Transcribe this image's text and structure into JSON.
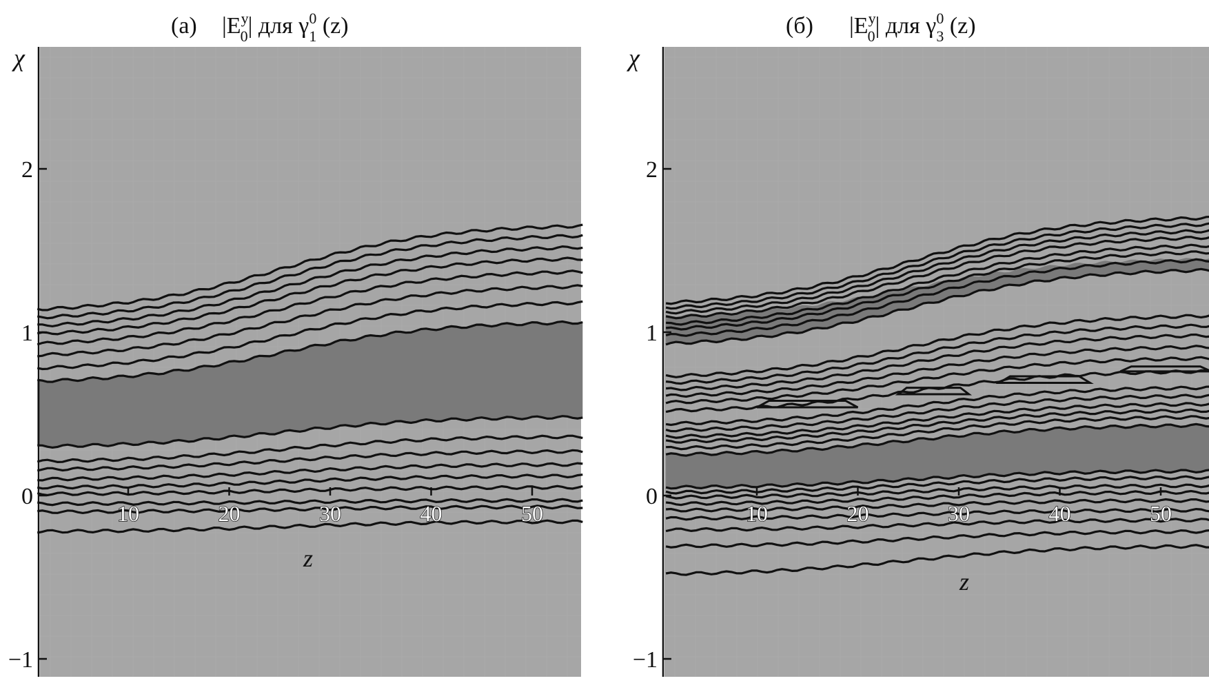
{
  "chart_data": [
    {
      "type": "contour",
      "title": {
        "label": "(а)",
        "prefix": "|E",
        "sup1": "y",
        "sub1": "0",
        "middle": "| для γ",
        "sup2": "0",
        "sub2": "1",
        "suffix": " (z)"
      },
      "xlabel": "z",
      "ylabel": "χ",
      "xlim": [
        1,
        55
      ],
      "ylim": [
        -1.1,
        2.7
      ],
      "xticks": [
        10,
        20,
        30,
        40,
        50
      ],
      "xtick_labels": [
        "10",
        "20",
        "30",
        "40",
        "50"
      ],
      "yticks": [
        -1,
        0,
        1,
        2
      ],
      "ytick_labels": [
        "−1",
        "0",
        "1",
        "2"
      ],
      "background_color": "#a6a6a6",
      "band_color": "#7a7a7a",
      "contour_color": "#111111",
      "band": {
        "lower": [
          0.3,
          0.48
        ],
        "upper": [
          0.7,
          1.06
        ]
      },
      "contours": [
        {
          "y_start": 1.14,
          "y_end": 1.65
        },
        {
          "y_start": 1.09,
          "y_end": 1.59
        },
        {
          "y_start": 1.04,
          "y_end": 1.52
        },
        {
          "y_start": 0.99,
          "y_end": 1.45
        },
        {
          "y_start": 0.93,
          "y_end": 1.37
        },
        {
          "y_start": 0.86,
          "y_end": 1.28
        },
        {
          "y_start": 0.78,
          "y_end": 1.18
        },
        {
          "y_start": 0.7,
          "y_end": 1.06
        },
        {
          "y_start": 0.3,
          "y_end": 0.48
        },
        {
          "y_start": 0.21,
          "y_end": 0.36
        },
        {
          "y_start": 0.16,
          "y_end": 0.27
        },
        {
          "y_start": 0.1,
          "y_end": 0.19
        },
        {
          "y_start": 0.05,
          "y_end": 0.12
        },
        {
          "y_start": 0.01,
          "y_end": 0.05
        },
        {
          "y_start": -0.05,
          "y_end": -0.03
        },
        {
          "y_start": -0.1,
          "y_end": -0.07
        },
        {
          "y_start": -0.22,
          "y_end": -0.16
        }
      ]
    },
    {
      "type": "contour",
      "title": {
        "label": "(б)",
        "prefix": "|E",
        "sup1": "y",
        "sub1": "0",
        "middle": "| для γ",
        "sup2": "0",
        "sub2": "3",
        "suffix": " (z)"
      },
      "xlabel": "z",
      "ylabel": "χ",
      "xlim": [
        1,
        55
      ],
      "ylim": [
        -1.1,
        2.7
      ],
      "xticks": [
        10,
        20,
        30,
        40,
        50
      ],
      "xtick_labels": [
        "10",
        "20",
        "30",
        "40",
        "50"
      ],
      "yticks": [
        -1,
        0,
        1,
        2
      ],
      "ytick_labels": [
        "−1",
        "0",
        "1",
        "2"
      ],
      "background_color": "#a6a6a6",
      "band_color": "#7a7a7a",
      "contour_color": "#111111",
      "bands": [
        {
          "lower": [
            0.93,
            1.38
          ],
          "upper": [
            1.1,
            1.45
          ]
        },
        {
          "lower": [
            0.05,
            0.15
          ],
          "upper": [
            0.25,
            0.43
          ]
        }
      ],
      "contours": [
        {
          "y_start": 1.18,
          "y_end": 1.7
        },
        {
          "y_start": 1.15,
          "y_end": 1.66
        },
        {
          "y_start": 1.12,
          "y_end": 1.62
        },
        {
          "y_start": 1.09,
          "y_end": 1.58
        },
        {
          "y_start": 1.05,
          "y_end": 1.53
        },
        {
          "y_start": 1.02,
          "y_end": 1.49
        },
        {
          "y_start": 0.98,
          "y_end": 1.44
        },
        {
          "y_start": 0.93,
          "y_end": 1.38
        },
        {
          "y_start": 0.73,
          "y_end": 1.1
        },
        {
          "y_start": 0.69,
          "y_end": 1.04
        },
        {
          "y_start": 0.65,
          "y_end": 0.98
        },
        {
          "y_start": 0.61,
          "y_end": 0.91
        },
        {
          "y_start": 0.57,
          "y_end": 0.84
        },
        {
          "y_start": 0.52,
          "y_end": 0.76
        },
        {
          "y_start": 0.44,
          "y_end": 0.66
        },
        {
          "y_start": 0.4,
          "y_end": 0.61
        },
        {
          "y_start": 0.36,
          "y_end": 0.56
        },
        {
          "y_start": 0.33,
          "y_end": 0.52
        },
        {
          "y_start": 0.29,
          "y_end": 0.48
        },
        {
          "y_start": 0.25,
          "y_end": 0.43
        },
        {
          "y_start": 0.05,
          "y_end": 0.15
        },
        {
          "y_start": 0.02,
          "y_end": 0.11
        },
        {
          "y_start": -0.01,
          "y_end": 0.06
        },
        {
          "y_start": -0.05,
          "y_end": 0.02
        },
        {
          "y_start": -0.09,
          "y_end": -0.03
        },
        {
          "y_start": -0.14,
          "y_end": -0.09
        },
        {
          "y_start": -0.21,
          "y_end": -0.15
        },
        {
          "y_start": -0.31,
          "y_end": -0.22
        },
        {
          "y_start": -0.48,
          "y_end": -0.31
        }
      ],
      "closed_contours": [
        {
          "x": [
            10,
            20
          ],
          "y": [
            0.54,
            0.58
          ]
        },
        {
          "x": [
            24,
            31
          ],
          "y": [
            0.62,
            0.66
          ]
        },
        {
          "x": [
            34,
            43
          ],
          "y": [
            0.69,
            0.73
          ]
        },
        {
          "x": [
            46,
            55
          ],
          "y": [
            0.76,
            0.79
          ]
        }
      ]
    }
  ]
}
